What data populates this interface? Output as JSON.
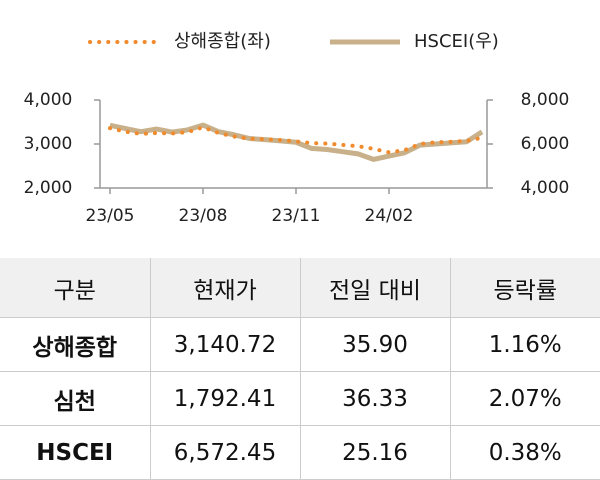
{
  "chart_data": {
    "type": "line",
    "categories": [
      "23/05",
      null,
      null,
      null,
      null,
      null,
      "23/08",
      null,
      null,
      null,
      null,
      null,
      "23/11",
      null,
      null,
      null,
      null,
      null,
      "24/02",
      null,
      null,
      null,
      null,
      null,
      null
    ],
    "series": [
      {
        "name": "상해종합(좌)",
        "color": "#f08a2c",
        "style": "dotted",
        "axis": "y",
        "values": [
          3360,
          3280,
          3230,
          3250,
          3240,
          3270,
          3380,
          3250,
          3170,
          3120,
          3110,
          3090,
          3060,
          3020,
          3010,
          2980,
          2950,
          2890,
          2810,
          2860,
          3000,
          3040,
          3050,
          3070,
          3140
        ]
      },
      {
        "name": "HSCEI(우)",
        "color": "#c8b08a",
        "style": "solid",
        "axis": "y2",
        "values": [
          6850,
          6700,
          6560,
          6680,
          6540,
          6640,
          6860,
          6560,
          6420,
          6250,
          6200,
          6140,
          6080,
          5800,
          5750,
          5650,
          5550,
          5300,
          5450,
          5600,
          5950,
          6000,
          6050,
          6100,
          6550
        ]
      }
    ],
    "ylim": [
      2000,
      4000
    ],
    "yticks": [
      {
        "value": 2000,
        "label": "2,000"
      },
      {
        "value": 3000,
        "label": "3,000"
      },
      {
        "value": 4000,
        "label": "4,000"
      }
    ],
    "y2lim": [
      4000,
      8000
    ],
    "y2ticks": [
      {
        "value": 4000,
        "label": "4,000"
      },
      {
        "value": 6000,
        "label": "6,000"
      },
      {
        "value": 8000,
        "label": "8,000"
      }
    ],
    "legend": "top",
    "grid": false
  },
  "table": {
    "header": [
      "구분",
      "현재가",
      "전일 대비",
      "등락률"
    ],
    "rows": [
      [
        "상해종합",
        "3,140.72",
        "35.90",
        "1.16%"
      ],
      [
        "심천",
        "1,792.41",
        "36.33",
        "2.07%"
      ],
      [
        "HSCEI",
        "6,572.45",
        "25.16",
        "0.38%"
      ]
    ]
  }
}
